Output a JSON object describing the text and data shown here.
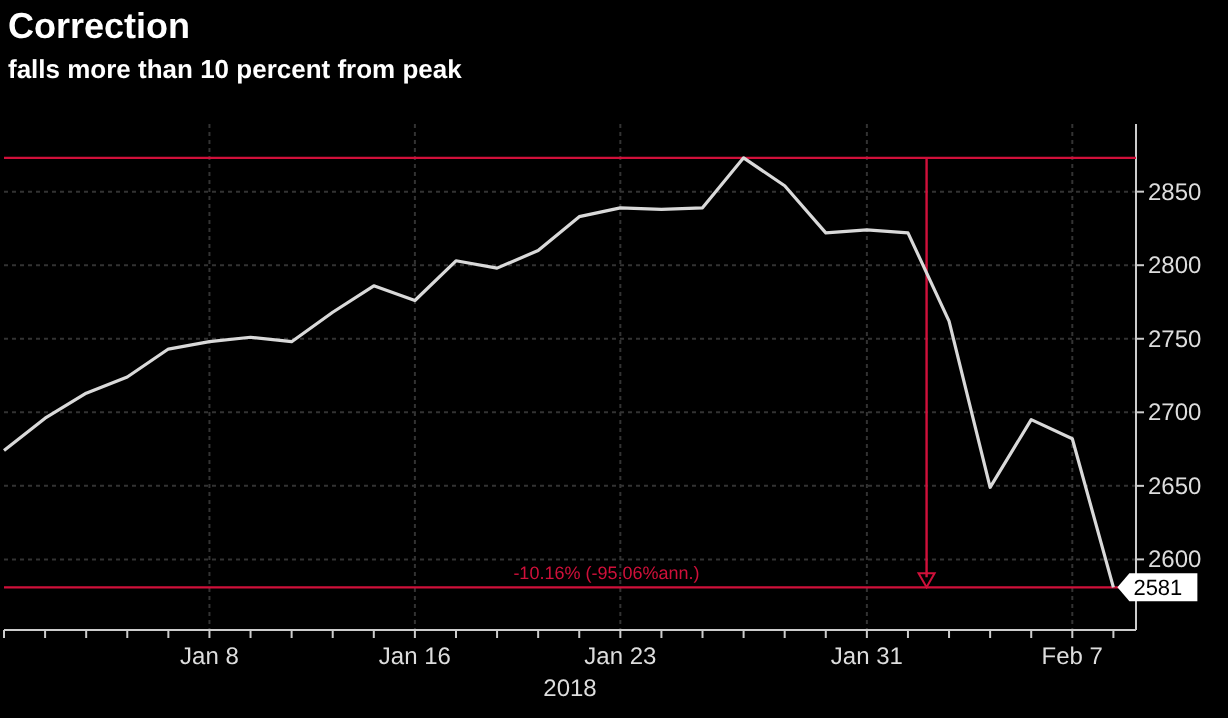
{
  "chart_data": {
    "type": "line",
    "title": "Correction",
    "subtitle": "falls more than 10 percent from peak",
    "xlabel": "2018",
    "categories": [
      null,
      null,
      null,
      null,
      null,
      "Jan 8",
      null,
      null,
      null,
      null,
      "Jan 16",
      null,
      null,
      null,
      null,
      "Jan 23",
      null,
      null,
      null,
      null,
      null,
      "Jan 31",
      null,
      null,
      null,
      null,
      "Feb 7",
      null
    ],
    "series": [
      {
        "color": "#d9d9d9",
        "values": [
          2674,
          2696,
          2713,
          2724,
          2743,
          2748,
          2751,
          2748,
          2768,
          2786,
          2776,
          2803,
          2798,
          2810,
          2833,
          2839,
          2838,
          2839,
          2873,
          2854,
          2822,
          2824,
          2822,
          2762,
          2649,
          2695,
          2682,
          2581
        ],
        "value_labels": [
          null,
          null,
          null,
          null,
          null,
          null,
          null,
          null,
          null,
          null,
          null,
          null,
          null,
          null,
          null,
          null,
          null,
          null,
          null,
          null,
          null,
          null,
          null,
          null,
          null,
          null,
          null,
          "2581"
        ]
      }
    ],
    "ylim": [
      2552,
      2896
    ],
    "yticks": [
      2600,
      2650,
      2700,
      2750,
      2800,
      2850
    ],
    "grid": true,
    "ref_lines": [
      {
        "axis": "y",
        "value": 2873,
        "color": "#d0103a"
      },
      {
        "axis": "y",
        "value": 2581,
        "color": "#d0103a"
      }
    ],
    "annotations": [
      "-10.16% (-95.06%ann.)"
    ]
  }
}
